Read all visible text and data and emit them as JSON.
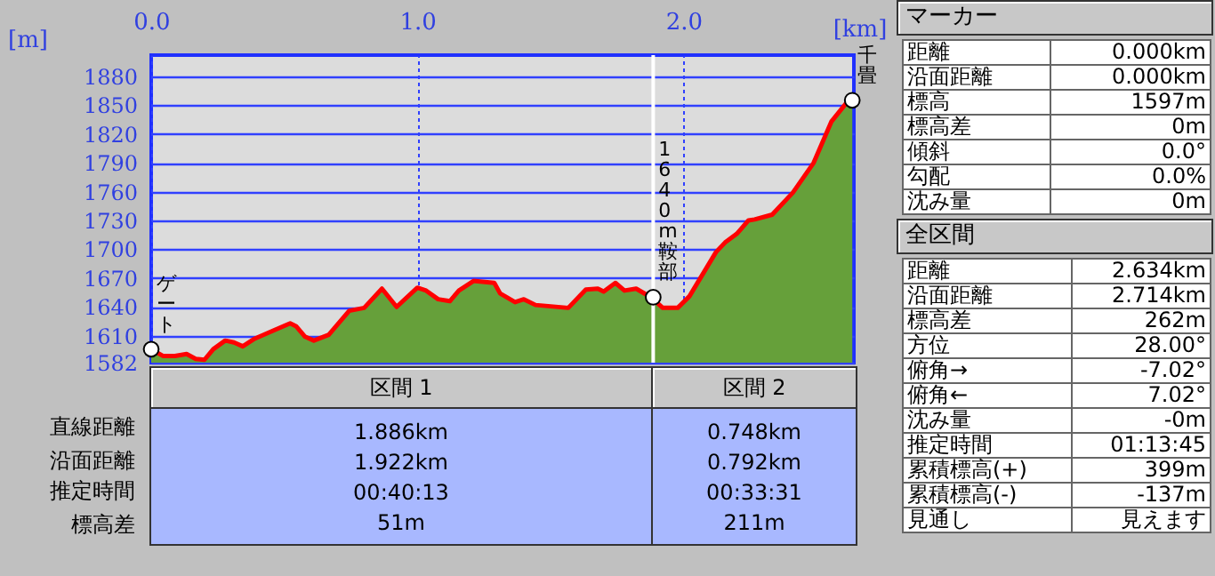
{
  "chart_data": {
    "type": "area",
    "xlabel": "[km]",
    "ylabel": "[m]",
    "x": [
      0,
      0.044,
      0.089,
      0.133,
      0.167,
      0.2,
      0.233,
      0.278,
      0.311,
      0.344,
      0.389,
      0.456,
      0.522,
      0.544,
      0.578,
      0.611,
      0.667,
      0.744,
      0.8,
      0.867,
      0.922,
      1.0,
      1.033,
      1.078,
      1.122,
      1.156,
      1.211,
      1.289,
      1.311,
      1.367,
      1.4,
      1.444,
      1.567,
      1.633,
      1.678,
      1.7,
      1.744,
      1.778,
      1.822,
      1.878,
      1.922,
      1.978,
      2.022,
      2.122,
      2.156,
      2.2,
      2.244,
      2.267,
      2.333,
      2.411,
      2.489,
      2.556,
      2.611,
      2.634
    ],
    "series": [
      {
        "type": "area",
        "color": "#66a03a",
        "values": [
          1596,
          1589,
          1589,
          1591,
          1586,
          1585,
          1596,
          1605,
          1603,
          1599,
          1607,
          1615,
          1623,
          1620,
          1609,
          1605,
          1611,
          1636,
          1639,
          1659,
          1640,
          1660,
          1657,
          1648,
          1646,
          1657,
          1667,
          1665,
          1654,
          1645,
          1648,
          1642,
          1639,
          1658,
          1659,
          1656,
          1665,
          1657,
          1659,
          1650,
          1639,
          1639,
          1651,
          1697,
          1707,
          1716,
          1730,
          1731,
          1736,
          1759,
          1790,
          1833,
          1852,
          1855
        ]
      },
      {
        "type": "line",
        "color": "#ff0000",
        "values": [
          1596,
          1589,
          1589,
          1591,
          1586,
          1585,
          1596,
          1605,
          1603,
          1599,
          1607,
          1615,
          1623,
          1620,
          1609,
          1605,
          1611,
          1636,
          1639,
          1659,
          1640,
          1660,
          1657,
          1648,
          1646,
          1657,
          1667,
          1665,
          1654,
          1645,
          1648,
          1642,
          1639,
          1658,
          1659,
          1656,
          1665,
          1657,
          1659,
          1650,
          1639,
          1639,
          1651,
          1697,
          1707,
          1716,
          1730,
          1731,
          1736,
          1759,
          1790,
          1833,
          1852,
          1855
        ]
      }
    ],
    "xlim": [
      0,
      2.64
    ],
    "xticks": [
      {
        "value": 0,
        "label": "0.0"
      },
      {
        "value": 1,
        "label": "1.0"
      },
      {
        "value": 2,
        "label": "2.0"
      }
    ],
    "ylim": [
      1582,
      1902
    ],
    "yticks": [
      1582,
      1610,
      1640,
      1670,
      1700,
      1730,
      1760,
      1790,
      1820,
      1850,
      1880
    ],
    "grid": true,
    "ref_lines": [
      {
        "axis": "x",
        "value": 1.886,
        "color": "#ffffff"
      }
    ],
    "annotations": [
      {
        "text": "ゲート",
        "x": 0,
        "y": 1596
      },
      {
        "text": "1640m鞍部",
        "x": 1.886,
        "y": 1650
      },
      {
        "text": "千畳",
        "x": 2.634,
        "y": 1855
      },
      "区間 1",
      "区間 2",
      "直線距離",
      "1.886km",
      "0.748km",
      "沿面距離",
      "1.922km",
      "0.792km",
      "推定時間",
      "00:40:13",
      "00:33:31",
      "標高差",
      "51m",
      "211m",
      "マーカー",
      "距離",
      "0.000km",
      "沿面距離",
      "0.000km",
      "標高",
      "1597m",
      "標高差",
      "0m",
      "傾斜",
      "0.0°",
      "勾配",
      "0.0%",
      "沈み量",
      "0m",
      "全区間",
      "距離",
      "2.634km",
      "沿面距離",
      "2.714km",
      "標高差",
      "262m",
      "方位",
      "28.00°",
      "俯角→",
      "-7.02°",
      "俯角←",
      "7.02°",
      "沈み量",
      "-0m",
      "推定時間",
      "01:13:45",
      "累積標高(+)",
      "399m",
      "累積標高(-)",
      "-137m",
      "見通し",
      "見えます"
    ]
  }
}
